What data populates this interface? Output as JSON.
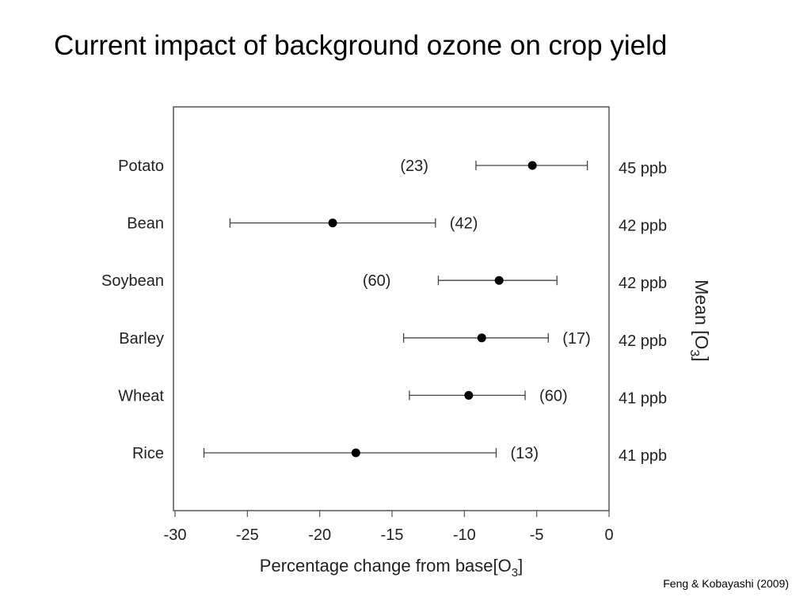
{
  "slide": {
    "title": "Current impact of background ozone on crop yield",
    "citation": "Feng & Kobayashi (2009)"
  },
  "chart_data": {
    "type": "scatter",
    "subtype": "forest-plot",
    "title": "",
    "xlabel": "Percentage change from base[O",
    "xlabel_subscript": "3",
    "xlabel_suffix": "]",
    "right_axis_label": "Mean [O",
    "right_axis_label_subscript": "3",
    "right_axis_label_suffix": "]",
    "xlim": [
      -30,
      0
    ],
    "xticks": [
      -30,
      -25,
      -20,
      -15,
      -10,
      -5,
      0
    ],
    "grid": false,
    "marker_color": "#000000",
    "categories": [
      "Potato",
      "Bean",
      "Soybean",
      "Barley",
      "Wheat",
      "Rice"
    ],
    "series": [
      {
        "mean": [
          -5.3,
          -19.1,
          -7.6,
          -8.8,
          -9.7,
          -17.5
        ],
        "lower": [
          -9.2,
          -26.2,
          -11.8,
          -14.2,
          -13.8,
          -28.0
        ],
        "upper": [
          -1.5,
          -12.0,
          -3.6,
          -4.2,
          -5.8,
          -7.8
        ],
        "n_labels": [
          "(23)",
          "(42)",
          "(60)",
          "(17)",
          "(60)",
          "(13)"
        ],
        "ozone": [
          "45 ppb",
          "42 ppb",
          "42 ppb",
          "42 ppb",
          "41 ppb",
          "41 ppb"
        ]
      }
    ]
  }
}
